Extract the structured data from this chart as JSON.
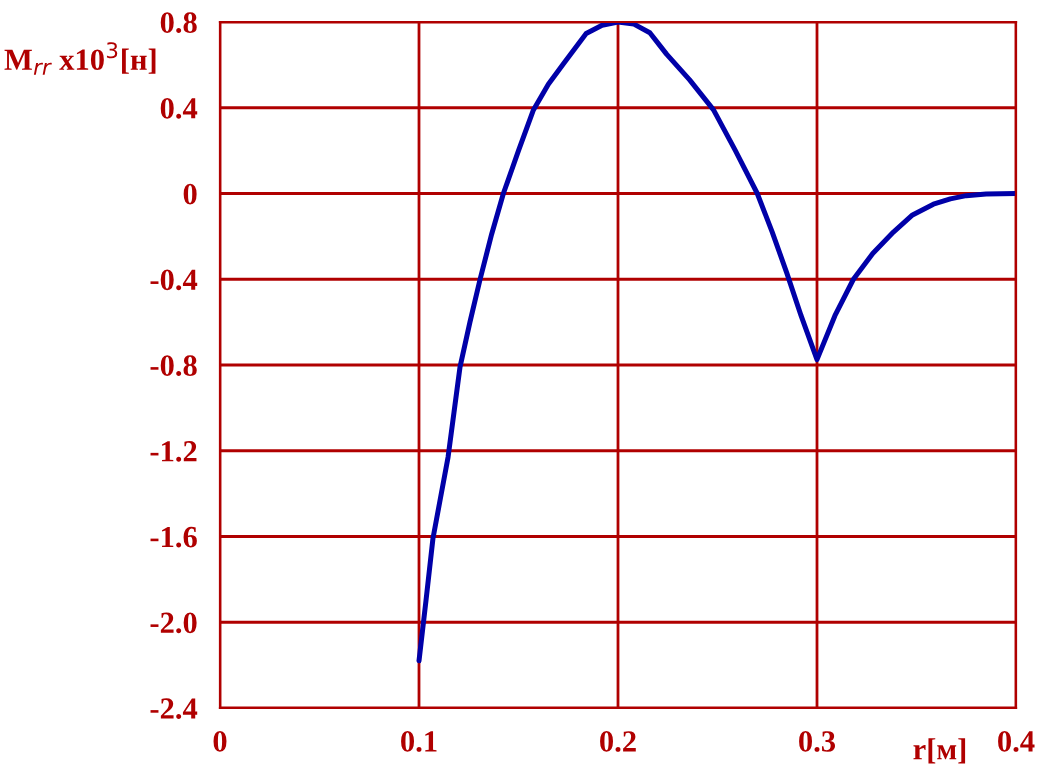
{
  "chart_data": {
    "type": "line",
    "xlabel": "r[м]",
    "ylabel": "M$_{rr}$ x10$^{3}$[н]",
    "x": [
      0.1,
      0.1035,
      0.107,
      0.1108,
      0.1146,
      0.1176,
      0.1206,
      0.1256,
      0.1307,
      0.1365,
      0.1424,
      0.15,
      0.1575,
      0.165,
      0.1726,
      0.184,
      0.192,
      0.2,
      0.208,
      0.216,
      0.2244,
      0.236,
      0.248,
      0.259,
      0.27,
      0.2775,
      0.2848,
      0.292,
      0.3,
      0.309,
      0.3183,
      0.328,
      0.3384,
      0.348,
      0.3585,
      0.367,
      0.375,
      0.385,
      0.4
    ],
    "series": [
      {
        "color": "#0000a8",
        "values": [
          -2.18,
          -1.9,
          -1.61,
          -1.42,
          -1.23,
          -1.02,
          -0.81,
          -0.6,
          -0.4,
          -0.19,
          0,
          0.2,
          0.39,
          0.51,
          0.605,
          0.746,
          0.785,
          0.8,
          0.79,
          0.75,
          0.65,
          0.53,
          0.39,
          0.2,
          0,
          -0.18,
          -0.37,
          -0.57,
          -0.775,
          -0.57,
          -0.4,
          -0.28,
          -0.18,
          -0.1,
          -0.05,
          -0.025,
          -0.01,
          -0.002,
          0
        ]
      }
    ],
    "xlim": [
      0,
      0.4
    ],
    "ylim": [
      -2.4,
      0.8
    ],
    "xticks": [
      0,
      0.1,
      0.2,
      0.3,
      0.4
    ],
    "yticks": [
      0.8,
      0.4,
      0,
      -0.4,
      -0.8,
      -1.2,
      -1.6,
      {
        "value": -2,
        "label": "-2.0"
      },
      -2.4
    ],
    "grid": true
  }
}
